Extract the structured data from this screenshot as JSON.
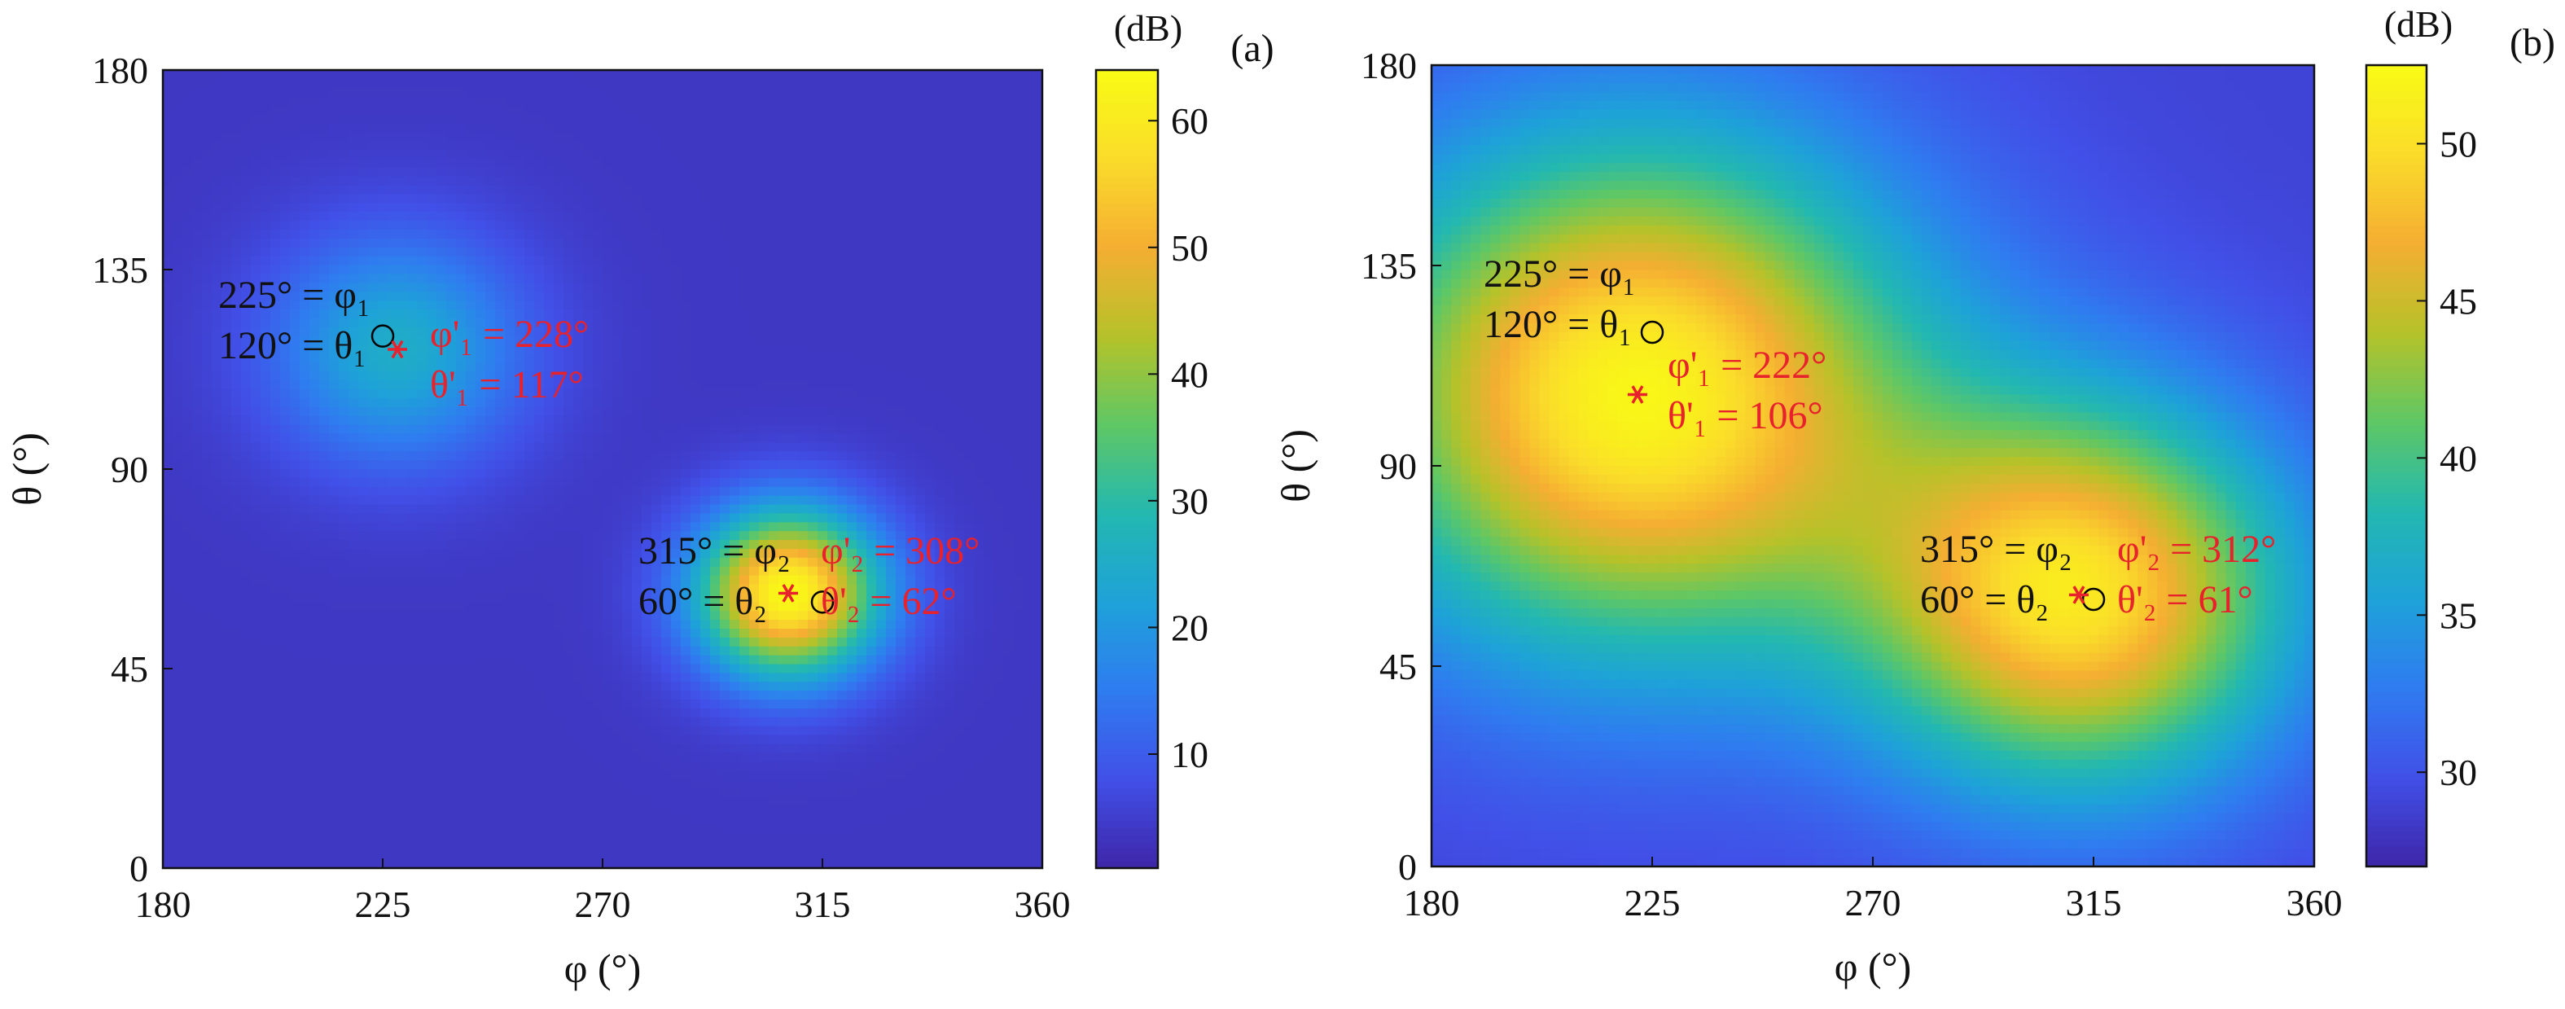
{
  "chart_data": [
    {
      "panel": "a",
      "type": "heatmap",
      "panel_label": "(a)",
      "colorbar_unit": "(dB)",
      "xlabel": "φ (°)",
      "ylabel": "θ (°)",
      "xlim": [
        180,
        360
      ],
      "ylim": [
        0,
        180
      ],
      "xticks": [
        180,
        225,
        270,
        315,
        360
      ],
      "yticks": [
        0,
        45,
        90,
        135,
        180
      ],
      "color_range": [
        1,
        64
      ],
      "colorbar_ticks": [
        10,
        20,
        30,
        40,
        50,
        60
      ],
      "background_level": 4,
      "peaks": [
        {
          "phi": 228,
          "theta": 117,
          "level": 25,
          "width": 18
        },
        {
          "phi": 308,
          "theta": 62,
          "level": 64,
          "width": 13
        }
      ],
      "true_markers": [
        {
          "phi": 225,
          "theta": 120
        },
        {
          "phi": 315,
          "theta": 60
        }
      ],
      "estimated_markers": [
        {
          "phi": 228,
          "theta": 117
        },
        {
          "phi": 308,
          "theta": 62
        }
      ],
      "annotations": [
        {
          "color": "black",
          "line1": "225° = φ₁",
          "line2": "120° = θ₁"
        },
        {
          "color": "red",
          "line1": "φ'₁ = 228°",
          "line2": "θ'₁ = 117°"
        },
        {
          "color": "black",
          "line1": "315° = φ₂",
          "line2": "60° = θ₂"
        },
        {
          "color": "red",
          "line1": "φ'₂ = 308°",
          "line2": "θ'₂ = 62°"
        }
      ]
    },
    {
      "panel": "b",
      "type": "heatmap",
      "panel_label": "(b)",
      "colorbar_unit": "(dB)",
      "xlabel": "φ (°)",
      "ylabel": "θ (°)",
      "xlim": [
        180,
        360
      ],
      "ylim": [
        0,
        180
      ],
      "xticks": [
        180,
        225,
        270,
        315,
        360
      ],
      "yticks": [
        0,
        45,
        90,
        135,
        180
      ],
      "color_range": [
        27,
        52.5
      ],
      "colorbar_ticks": [
        30,
        35,
        40,
        45,
        50
      ],
      "background_level": 29,
      "peaks": [
        {
          "phi": 222,
          "theta": 106,
          "level": 52,
          "width": 40
        },
        {
          "phi": 312,
          "theta": 61,
          "level": 50,
          "width": 30
        }
      ],
      "true_markers": [
        {
          "phi": 225,
          "theta": 120
        },
        {
          "phi": 315,
          "theta": 60
        }
      ],
      "estimated_markers": [
        {
          "phi": 222,
          "theta": 106
        },
        {
          "phi": 312,
          "theta": 61
        }
      ],
      "annotations": [
        {
          "color": "black",
          "line1": "225° = φ₁",
          "line2": "120° = θ₁"
        },
        {
          "color": "red",
          "line1": "φ'₁ = 222°",
          "line2": "θ'₁ = 106°"
        },
        {
          "color": "black",
          "line1": "315° = φ₂",
          "line2": "60° = θ₂"
        },
        {
          "color": "red",
          "line1": "φ'₂ = 312°",
          "line2": "θ'₂ = 61°"
        }
      ]
    }
  ],
  "colors": {
    "true_marker": "#000000",
    "estimated_marker": "#e8222c",
    "colormap": [
      "#3e26a8",
      "#4150e8",
      "#2f7cf0",
      "#1ea2d8",
      "#23b8b0",
      "#5fc765",
      "#b6c229",
      "#f5ae32",
      "#fadc2a",
      "#f9fb14"
    ]
  }
}
